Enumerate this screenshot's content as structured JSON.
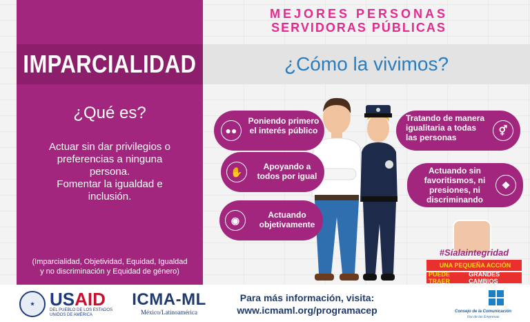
{
  "left": {
    "title": "IMPARCIALIDAD",
    "question": "¿Qué es?",
    "definition_lines": [
      "Actuar sin dar privilegios o",
      "preferencias a ninguna",
      "persona.",
      "Fomentar  la igualdad e",
      "inclusión."
    ],
    "values_note_1": "(Imparcialidad, Objetividad, Equidad, Igualdad",
    "values_note_2": "y no discriminación y  Equidad de género)"
  },
  "heading": {
    "line1": "MEJORES PERSONAS",
    "line2": "SERVIDORAS PÚBLICAS"
  },
  "como": "¿Cómo la vivimos?",
  "pills": [
    {
      "lines": [
        "Poniendo primero",
        "el interés público"
      ],
      "icon": "group-icon"
    },
    {
      "lines": [
        "Apoyando a",
        "todos por igual"
      ],
      "icon": "helping-hand-icon"
    },
    {
      "lines": [
        "Actuando",
        "objetivamente"
      ],
      "icon": "eye-icon"
    },
    {
      "lines": [
        "Tratando de manera",
        "igualitaria a todas",
        "las personas"
      ],
      "icon": "gender-equality-icon"
    },
    {
      "lines": [
        "Actuando sin",
        "favoritismos, ni",
        "presiones, ni",
        "discriminando"
      ],
      "icon": "ear-icon"
    }
  ],
  "slogan": {
    "hashtag": "#Síalaintegridad",
    "line1_a": "UNA PEQUEÑA ACCIÓN",
    "line2_a": "PUEDE TRAER",
    "line2_b": "GRANDES CAMBIOS"
  },
  "footer": {
    "usaid_a": "US",
    "usaid_b": "AID",
    "usaid_sub": "DEL PUEBLO DE LOS ESTADOS UNIDOS DE AMÉRICA",
    "icma_title": "ICMA-ML",
    "icma_sub": "México/Latinoamérica",
    "info_1": "Para más información, visita:",
    "info_2": "www.icmaml.org/programacep",
    "consejo_1": "Consejo de la Comunicación",
    "consejo_2": "Voz de las Empresas"
  },
  "colors": {
    "magenta": "#a3267e",
    "dark_magenta": "#8d1e6c",
    "pink": "#e32a8e",
    "blue": "#2a7dbf",
    "navy": "#1f3b6e",
    "red": "#e8312f"
  }
}
